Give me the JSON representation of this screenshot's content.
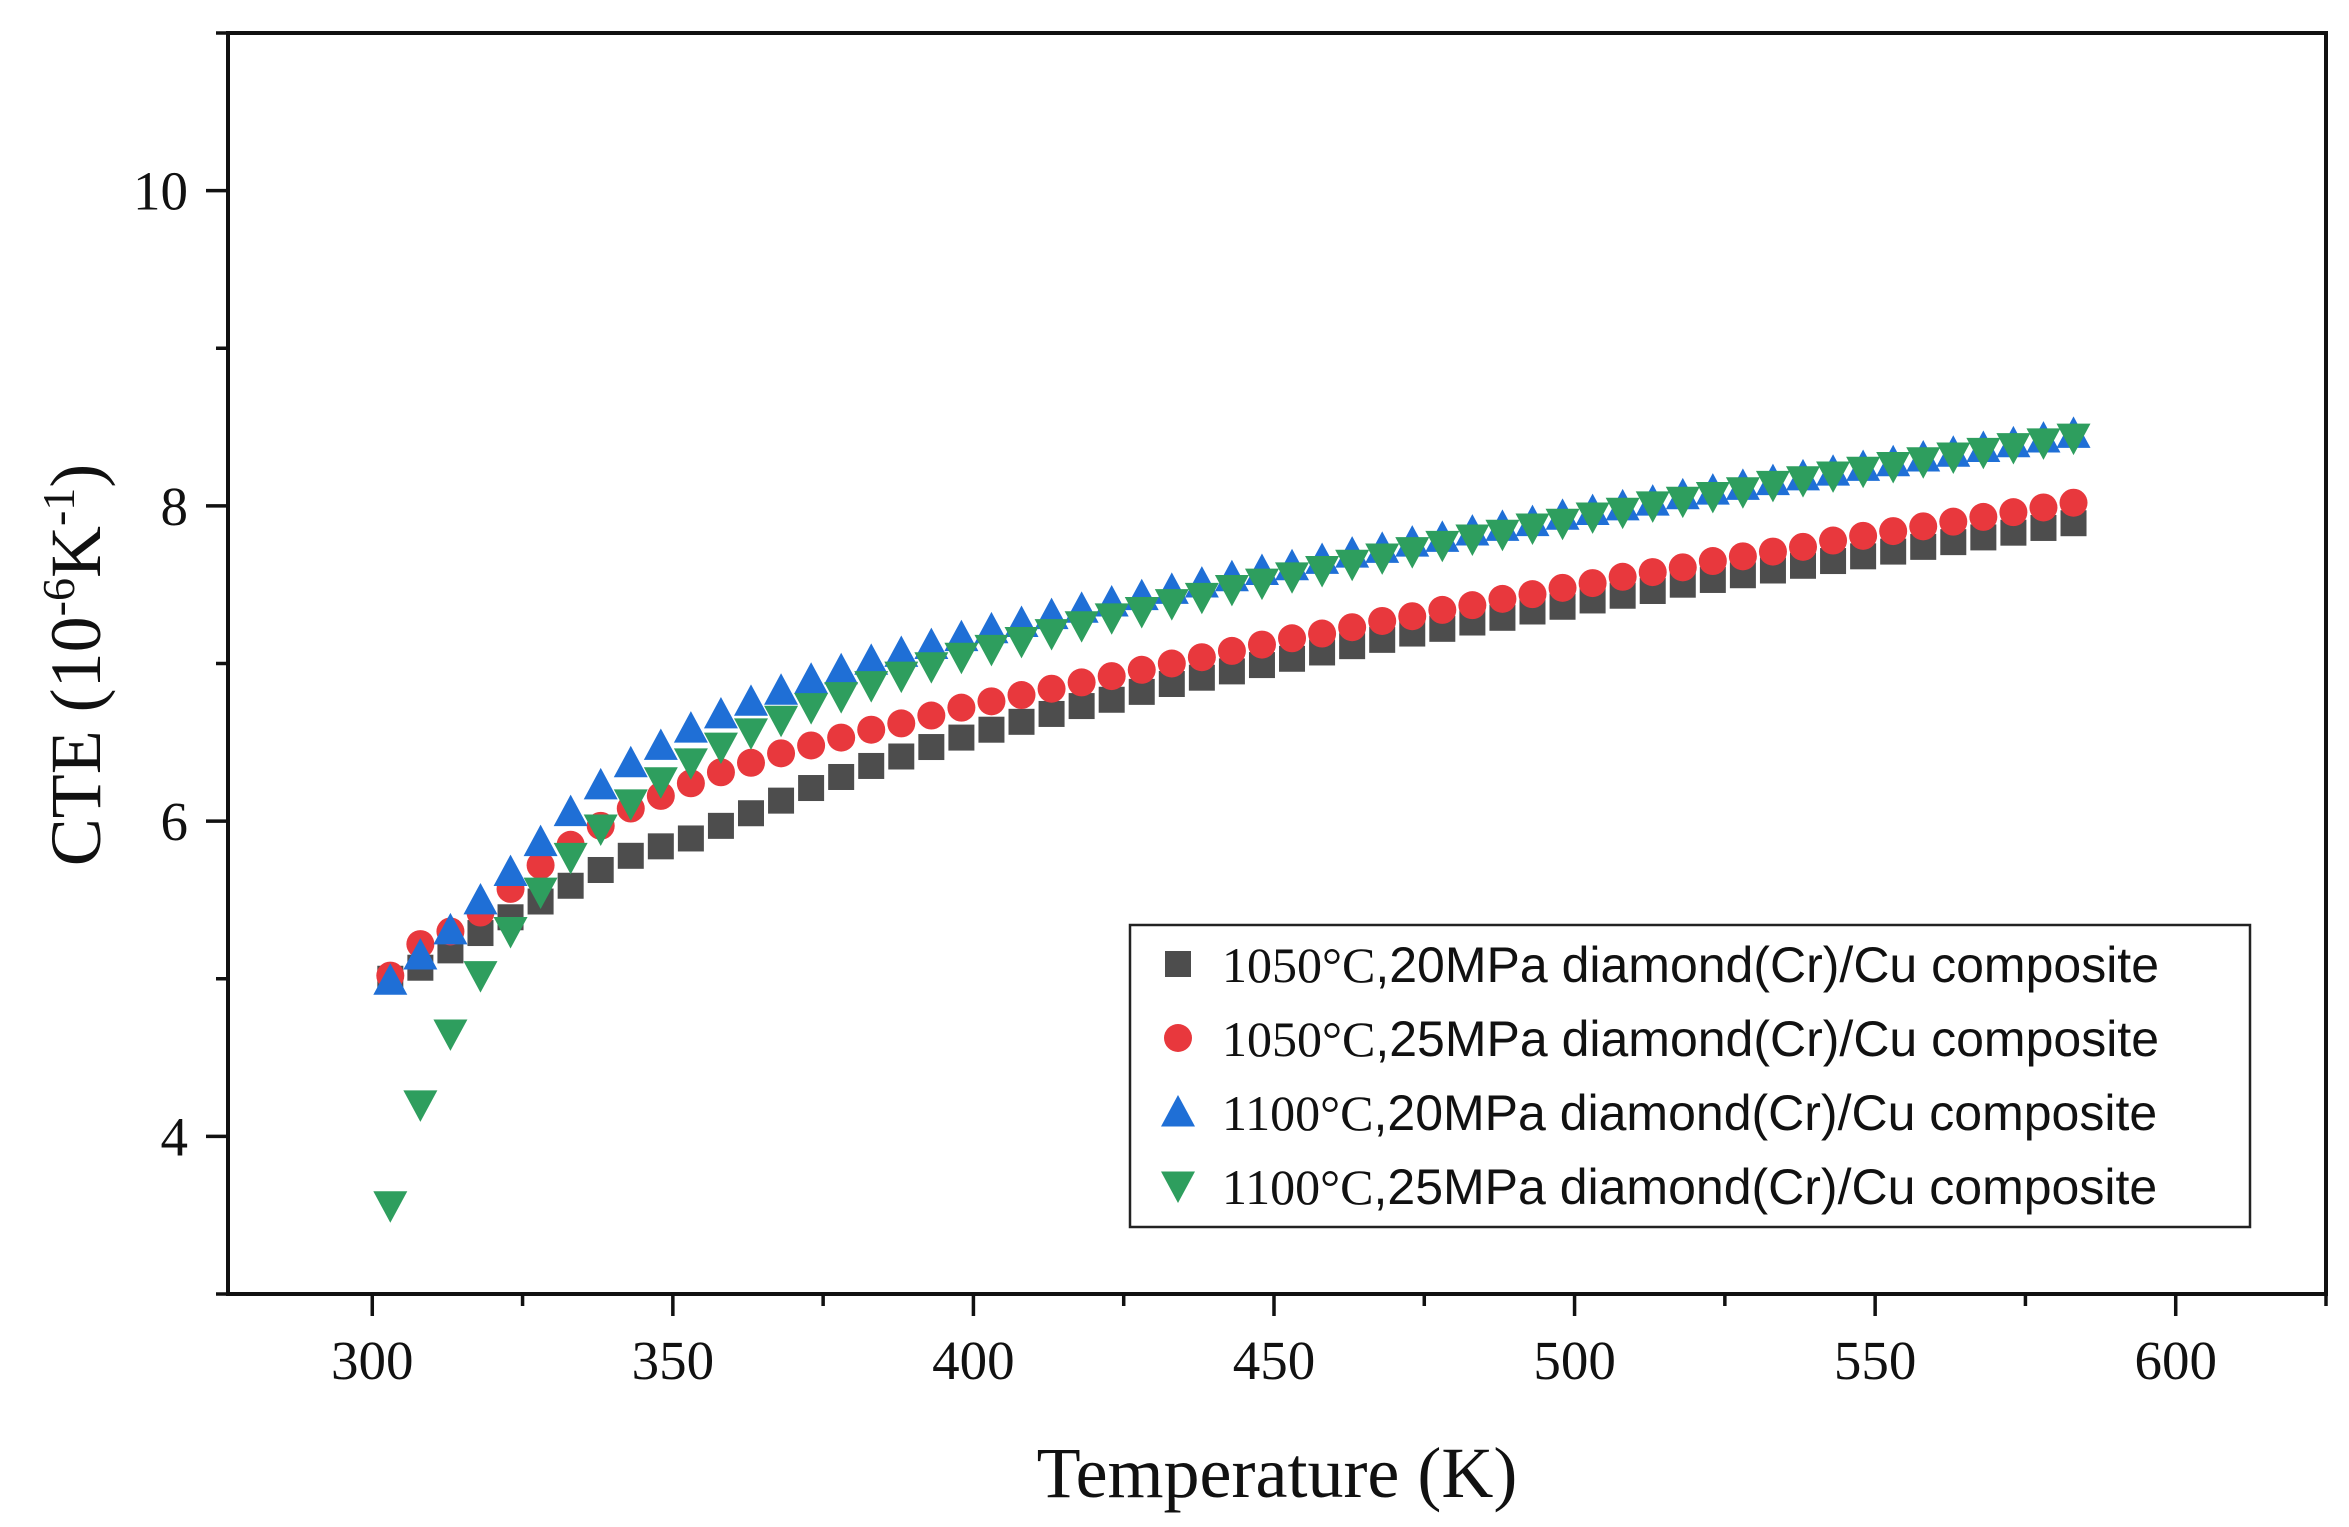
{
  "chart_data": {
    "type": "scatter",
    "title": "",
    "xlabel": "Temperature (K)",
    "ylabel": {
      "prefix": "CTE (10",
      "exp1": "-6",
      "mid": "K",
      "exp2": "-1",
      "suffix": ")"
    },
    "xlim": [
      276,
      625
    ],
    "ylim": [
      3.0,
      11.0
    ],
    "x_ticks": [
      "300",
      "350",
      "400",
      "450",
      "500",
      "550",
      "600"
    ],
    "y_ticks": [
      "4",
      "6",
      "8",
      "10"
    ],
    "grid": false,
    "legend_position": "bottom-right",
    "x": [
      303,
      308,
      313,
      318,
      323,
      328,
      333,
      338,
      343,
      348,
      353,
      358,
      363,
      368,
      373,
      378,
      383,
      388,
      393,
      398,
      403,
      408,
      413,
      418,
      423,
      428,
      433,
      438,
      443,
      448,
      453,
      458,
      463,
      468,
      473,
      478,
      483,
      488,
      493,
      498,
      503,
      508,
      513,
      518,
      523,
      528,
      533,
      538,
      543,
      548,
      553,
      558,
      563,
      568,
      573,
      578,
      583
    ],
    "series": [
      {
        "name": "1050°C,20MPa diamond(Cr)/Cu composite",
        "lead": "1050°C",
        "rest": ",20MPa diamond(Cr)/Cu composite",
        "marker": "square",
        "color": "#4d4d4d",
        "values": [
          5.0,
          5.07,
          5.18,
          5.29,
          5.39,
          5.49,
          5.59,
          5.69,
          5.78,
          5.84,
          5.89,
          5.97,
          6.05,
          6.13,
          6.21,
          6.28,
          6.35,
          6.41,
          6.47,
          6.53,
          6.58,
          6.63,
          6.68,
          6.73,
          6.77,
          6.82,
          6.87,
          6.91,
          6.95,
          6.99,
          7.03,
          7.07,
          7.11,
          7.15,
          7.19,
          7.22,
          7.26,
          7.29,
          7.33,
          7.36,
          7.4,
          7.43,
          7.46,
          7.5,
          7.53,
          7.56,
          7.59,
          7.62,
          7.65,
          7.68,
          7.71,
          7.74,
          7.77,
          7.8,
          7.83,
          7.86,
          7.89
        ]
      },
      {
        "name": "1050°C,25MPa diamond(Cr)/Cu composite",
        "lead": "1050°C",
        "rest": ",25MPa diamond(Cr)/Cu composite",
        "marker": "circle",
        "color": "#e8383d",
        "values": [
          5.02,
          5.22,
          5.3,
          5.42,
          5.57,
          5.72,
          5.85,
          5.97,
          6.08,
          6.16,
          6.24,
          6.31,
          6.37,
          6.43,
          6.48,
          6.53,
          6.58,
          6.62,
          6.67,
          6.72,
          6.76,
          6.8,
          6.84,
          6.88,
          6.92,
          6.96,
          7.0,
          7.04,
          7.08,
          7.12,
          7.16,
          7.19,
          7.23,
          7.27,
          7.3,
          7.34,
          7.37,
          7.41,
          7.44,
          7.48,
          7.51,
          7.55,
          7.58,
          7.61,
          7.65,
          7.68,
          7.71,
          7.74,
          7.78,
          7.81,
          7.84,
          7.87,
          7.9,
          7.93,
          7.96,
          7.99,
          8.02
        ]
      },
      {
        "name": "1100°C,20MPa diamond(Cr)/Cu composite",
        "lead": "1100°C",
        "rest": ",20MPa diamond(Cr)/Cu composite",
        "marker": "triangle-up",
        "color": "#1f6fd6",
        "values": [
          4.99,
          5.15,
          5.31,
          5.5,
          5.68,
          5.87,
          6.06,
          6.23,
          6.37,
          6.48,
          6.59,
          6.68,
          6.76,
          6.83,
          6.9,
          6.96,
          7.02,
          7.07,
          7.12,
          7.17,
          7.22,
          7.26,
          7.31,
          7.35,
          7.39,
          7.43,
          7.47,
          7.51,
          7.55,
          7.59,
          7.62,
          7.66,
          7.7,
          7.73,
          7.77,
          7.8,
          7.84,
          7.87,
          7.9,
          7.94,
          7.97,
          8.0,
          8.03,
          8.07,
          8.1,
          8.13,
          8.16,
          8.19,
          8.22,
          8.25,
          8.28,
          8.31,
          8.34,
          8.37,
          8.4,
          8.43,
          8.46
        ]
      },
      {
        "name": "1100°C,25MPa diamond(Cr)/Cu composite",
        "lead": "1100°C",
        "rest": ",25MPa diamond(Cr)/Cu composite",
        "marker": "triangle-down",
        "color": "#2e9e5e",
        "values": [
          3.56,
          4.2,
          4.65,
          5.02,
          5.3,
          5.55,
          5.77,
          5.95,
          6.11,
          6.25,
          6.37,
          6.47,
          6.56,
          6.64,
          6.72,
          6.79,
          6.86,
          6.92,
          6.98,
          7.04,
          7.09,
          7.14,
          7.19,
          7.24,
          7.29,
          7.33,
          7.38,
          7.42,
          7.47,
          7.51,
          7.55,
          7.59,
          7.63,
          7.67,
          7.71,
          7.75,
          7.79,
          7.82,
          7.86,
          7.89,
          7.93,
          7.96,
          8.0,
          8.03,
          8.06,
          8.09,
          8.13,
          8.16,
          8.19,
          8.22,
          8.25,
          8.28,
          8.31,
          8.34,
          8.37,
          8.4,
          8.43
        ]
      }
    ]
  }
}
